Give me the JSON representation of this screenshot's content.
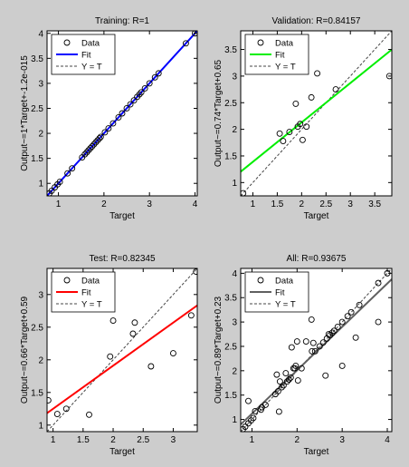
{
  "window": {
    "background": "#cdcdcd"
  },
  "chart_data": [
    {
      "type": "scatter",
      "title": "Training: R=1",
      "xlabel": "Target",
      "ylabel": "Output~=1*Target+-1.2e-015",
      "xlim": [
        0.75,
        4.05
      ],
      "ylim": [
        0.75,
        4.05
      ],
      "xticks": [
        "1",
        "2",
        "3",
        "4"
      ],
      "yticks": [
        "1",
        "1.5",
        "2",
        "2.5",
        "3",
        "3.5",
        "4"
      ],
      "fit": {
        "slope": 1.0,
        "intercept": 0.0,
        "color": "#0000ff"
      },
      "points": [
        [
          0.8,
          0.8
        ],
        [
          0.85,
          0.85
        ],
        [
          0.92,
          0.92
        ],
        [
          0.98,
          0.98
        ],
        [
          1.03,
          1.03
        ],
        [
          1.2,
          1.2
        ],
        [
          1.3,
          1.3
        ],
        [
          1.52,
          1.52
        ],
        [
          1.58,
          1.58
        ],
        [
          1.62,
          1.62
        ],
        [
          1.66,
          1.66
        ],
        [
          1.7,
          1.7
        ],
        [
          1.74,
          1.74
        ],
        [
          1.78,
          1.78
        ],
        [
          1.82,
          1.82
        ],
        [
          1.86,
          1.86
        ],
        [
          1.9,
          1.9
        ],
        [
          1.93,
          1.93
        ],
        [
          2.02,
          2.02
        ],
        [
          2.1,
          2.1
        ],
        [
          2.2,
          2.2
        ],
        [
          2.32,
          2.32
        ],
        [
          2.4,
          2.4
        ],
        [
          2.5,
          2.5
        ],
        [
          2.58,
          2.58
        ],
        [
          2.66,
          2.66
        ],
        [
          2.73,
          2.73
        ],
        [
          2.78,
          2.78
        ],
        [
          2.82,
          2.82
        ],
        [
          2.9,
          2.9
        ],
        [
          3.0,
          3.0
        ],
        [
          3.12,
          3.12
        ],
        [
          3.2,
          3.2
        ],
        [
          3.8,
          3.8
        ],
        [
          4.0,
          4.0
        ]
      ],
      "legend": {
        "position": "top-left",
        "entries": [
          "Data",
          "Fit",
          "Y = T"
        ]
      }
    },
    {
      "type": "scatter",
      "title": "Validation: R=0.84157",
      "xlabel": "Target",
      "ylabel": "Output~=0.74*Target+0.65",
      "xlim": [
        0.75,
        3.85
      ],
      "ylim": [
        0.75,
        3.85
      ],
      "xticks": [
        "1",
        "1.5",
        "2",
        "2.5",
        "3",
        "3.5"
      ],
      "yticks": [
        "1",
        "1.5",
        "2",
        "2.5",
        "3",
        "3.5"
      ],
      "fit": {
        "slope": 0.74,
        "intercept": 0.65,
        "color": "#00ee00"
      },
      "points": [
        [
          0.8,
          0.8
        ],
        [
          1.55,
          1.92
        ],
        [
          1.62,
          1.78
        ],
        [
          1.75,
          1.95
        ],
        [
          1.88,
          2.48
        ],
        [
          1.92,
          2.05
        ],
        [
          1.97,
          2.1
        ],
        [
          2.02,
          1.8
        ],
        [
          2.1,
          2.05
        ],
        [
          2.2,
          2.6
        ],
        [
          2.32,
          3.05
        ],
        [
          2.7,
          2.75
        ],
        [
          3.8,
          3.0
        ]
      ],
      "legend": {
        "position": "top-left",
        "entries": [
          "Data",
          "Fit",
          "Y = T"
        ]
      }
    },
    {
      "type": "scatter",
      "title": "Test: R=0.82345",
      "xlabel": "Target",
      "ylabel": "Output~=0.66*Target+0.59",
      "xlim": [
        0.9,
        3.4
      ],
      "ylim": [
        0.9,
        3.4
      ],
      "xticks": [
        "1",
        "1.5",
        "2",
        "2.5",
        "3"
      ],
      "yticks": [
        "1",
        "1.5",
        "2",
        "2.5",
        "3"
      ],
      "fit": {
        "slope": 0.66,
        "intercept": 0.59,
        "color": "#ff0000"
      },
      "points": [
        [
          0.92,
          1.38
        ],
        [
          1.07,
          1.17
        ],
        [
          1.22,
          1.25
        ],
        [
          1.6,
          1.16
        ],
        [
          1.95,
          2.05
        ],
        [
          2.0,
          2.6
        ],
        [
          2.33,
          2.4
        ],
        [
          2.36,
          2.57
        ],
        [
          2.63,
          1.9
        ],
        [
          3.0,
          2.1
        ],
        [
          3.3,
          2.68
        ],
        [
          3.38,
          3.35
        ]
      ],
      "legend": {
        "position": "top-left",
        "entries": [
          "Data",
          "Fit",
          "Y = T"
        ]
      }
    },
    {
      "type": "scatter",
      "title": "All: R=0.93675",
      "xlabel": "Target",
      "ylabel": "Output~=0.89*Target+0.23",
      "xlim": [
        0.75,
        4.1
      ],
      "ylim": [
        0.75,
        4.1
      ],
      "xticks": [
        "1",
        "2",
        "3",
        "4"
      ],
      "yticks": [
        "1",
        "1.5",
        "2",
        "2.5",
        "3",
        "3.5",
        "4"
      ],
      "fit": {
        "slope": 0.89,
        "intercept": 0.23,
        "color": "#606060"
      },
      "points": [
        [
          0.8,
          0.8
        ],
        [
          0.85,
          0.85
        ],
        [
          0.92,
          1.38
        ],
        [
          0.92,
          0.92
        ],
        [
          0.98,
          0.98
        ],
        [
          1.03,
          1.03
        ],
        [
          1.07,
          1.17
        ],
        [
          1.2,
          1.2
        ],
        [
          1.22,
          1.25
        ],
        [
          1.3,
          1.3
        ],
        [
          1.52,
          1.52
        ],
        [
          1.55,
          1.92
        ],
        [
          1.58,
          1.58
        ],
        [
          1.6,
          1.16
        ],
        [
          1.62,
          1.78
        ],
        [
          1.66,
          1.66
        ],
        [
          1.7,
          1.7
        ],
        [
          1.75,
          1.95
        ],
        [
          1.78,
          1.78
        ],
        [
          1.82,
          1.82
        ],
        [
          1.86,
          1.86
        ],
        [
          1.88,
          2.48
        ],
        [
          1.92,
          2.05
        ],
        [
          1.95,
          2.05
        ],
        [
          1.97,
          2.1
        ],
        [
          2.0,
          2.6
        ],
        [
          2.02,
          1.8
        ],
        [
          2.1,
          2.05
        ],
        [
          2.2,
          2.6
        ],
        [
          2.32,
          3.05
        ],
        [
          2.33,
          2.4
        ],
        [
          2.36,
          2.57
        ],
        [
          2.4,
          2.4
        ],
        [
          2.5,
          2.5
        ],
        [
          2.58,
          2.58
        ],
        [
          2.63,
          1.9
        ],
        [
          2.66,
          2.66
        ],
        [
          2.7,
          2.75
        ],
        [
          2.73,
          2.73
        ],
        [
          2.78,
          2.78
        ],
        [
          2.82,
          2.82
        ],
        [
          2.9,
          2.9
        ],
        [
          3.0,
          2.1
        ],
        [
          3.0,
          3.0
        ],
        [
          3.12,
          3.12
        ],
        [
          3.2,
          3.2
        ],
        [
          3.3,
          2.68
        ],
        [
          3.38,
          3.35
        ],
        [
          3.8,
          3.0
        ],
        [
          3.8,
          3.8
        ],
        [
          4.0,
          4.0
        ]
      ],
      "legend": {
        "position": "top-left",
        "entries": [
          "Data",
          "Fit",
          "Y = T"
        ]
      }
    }
  ]
}
